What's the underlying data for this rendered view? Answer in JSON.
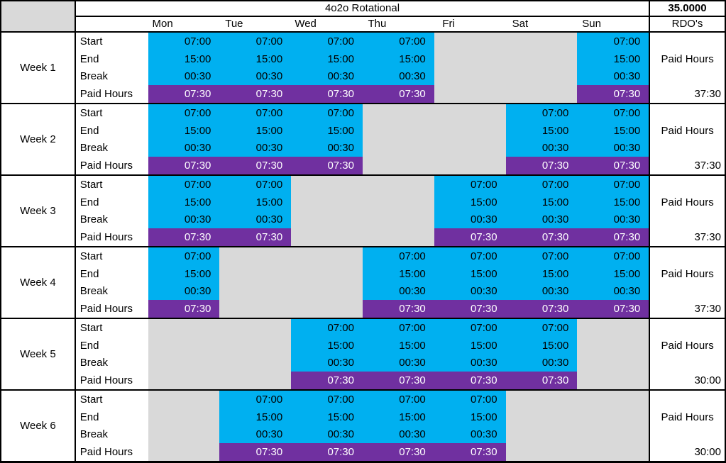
{
  "header": {
    "title": "4o2o Rotational",
    "weekly_hours": "35.0000",
    "rdo_label": "RDO's",
    "days": [
      "Mon",
      "Tue",
      "Wed",
      "Thu",
      "Fri",
      "Sat",
      "Sun"
    ]
  },
  "rows": [
    {
      "label": "Start",
      "field": "start"
    },
    {
      "label": "End",
      "field": "end"
    },
    {
      "label": "Break",
      "field": "break"
    },
    {
      "label": "Paid Hours",
      "field": "paid"
    }
  ],
  "shift": {
    "start": "07:00",
    "end": "15:00",
    "break": "00:30",
    "paid": "07:30"
  },
  "side_label": "Paid Hours",
  "colors": {
    "work_fill": "#00B0F0",
    "paid_fill": "#7030A0",
    "off_fill": "#D9D9D9",
    "paid_text": "#FFFFFF"
  },
  "weeks": [
    {
      "label": "Week 1",
      "work_days": [
        1,
        1,
        1,
        1,
        0,
        0,
        1
      ],
      "total": "37:30"
    },
    {
      "label": "Week 2",
      "work_days": [
        1,
        1,
        1,
        0,
        0,
        1,
        1
      ],
      "total": "37:30"
    },
    {
      "label": "Week 3",
      "work_days": [
        1,
        1,
        0,
        0,
        1,
        1,
        1
      ],
      "total": "37:30"
    },
    {
      "label": "Week 4",
      "work_days": [
        1,
        0,
        0,
        1,
        1,
        1,
        1
      ],
      "total": "37:30"
    },
    {
      "label": "Week 5",
      "work_days": [
        0,
        0,
        1,
        1,
        1,
        1,
        0
      ],
      "total": "30:00"
    },
    {
      "label": "Week 6",
      "work_days": [
        0,
        1,
        1,
        1,
        1,
        0,
        0
      ],
      "total": "30:00"
    }
  ]
}
